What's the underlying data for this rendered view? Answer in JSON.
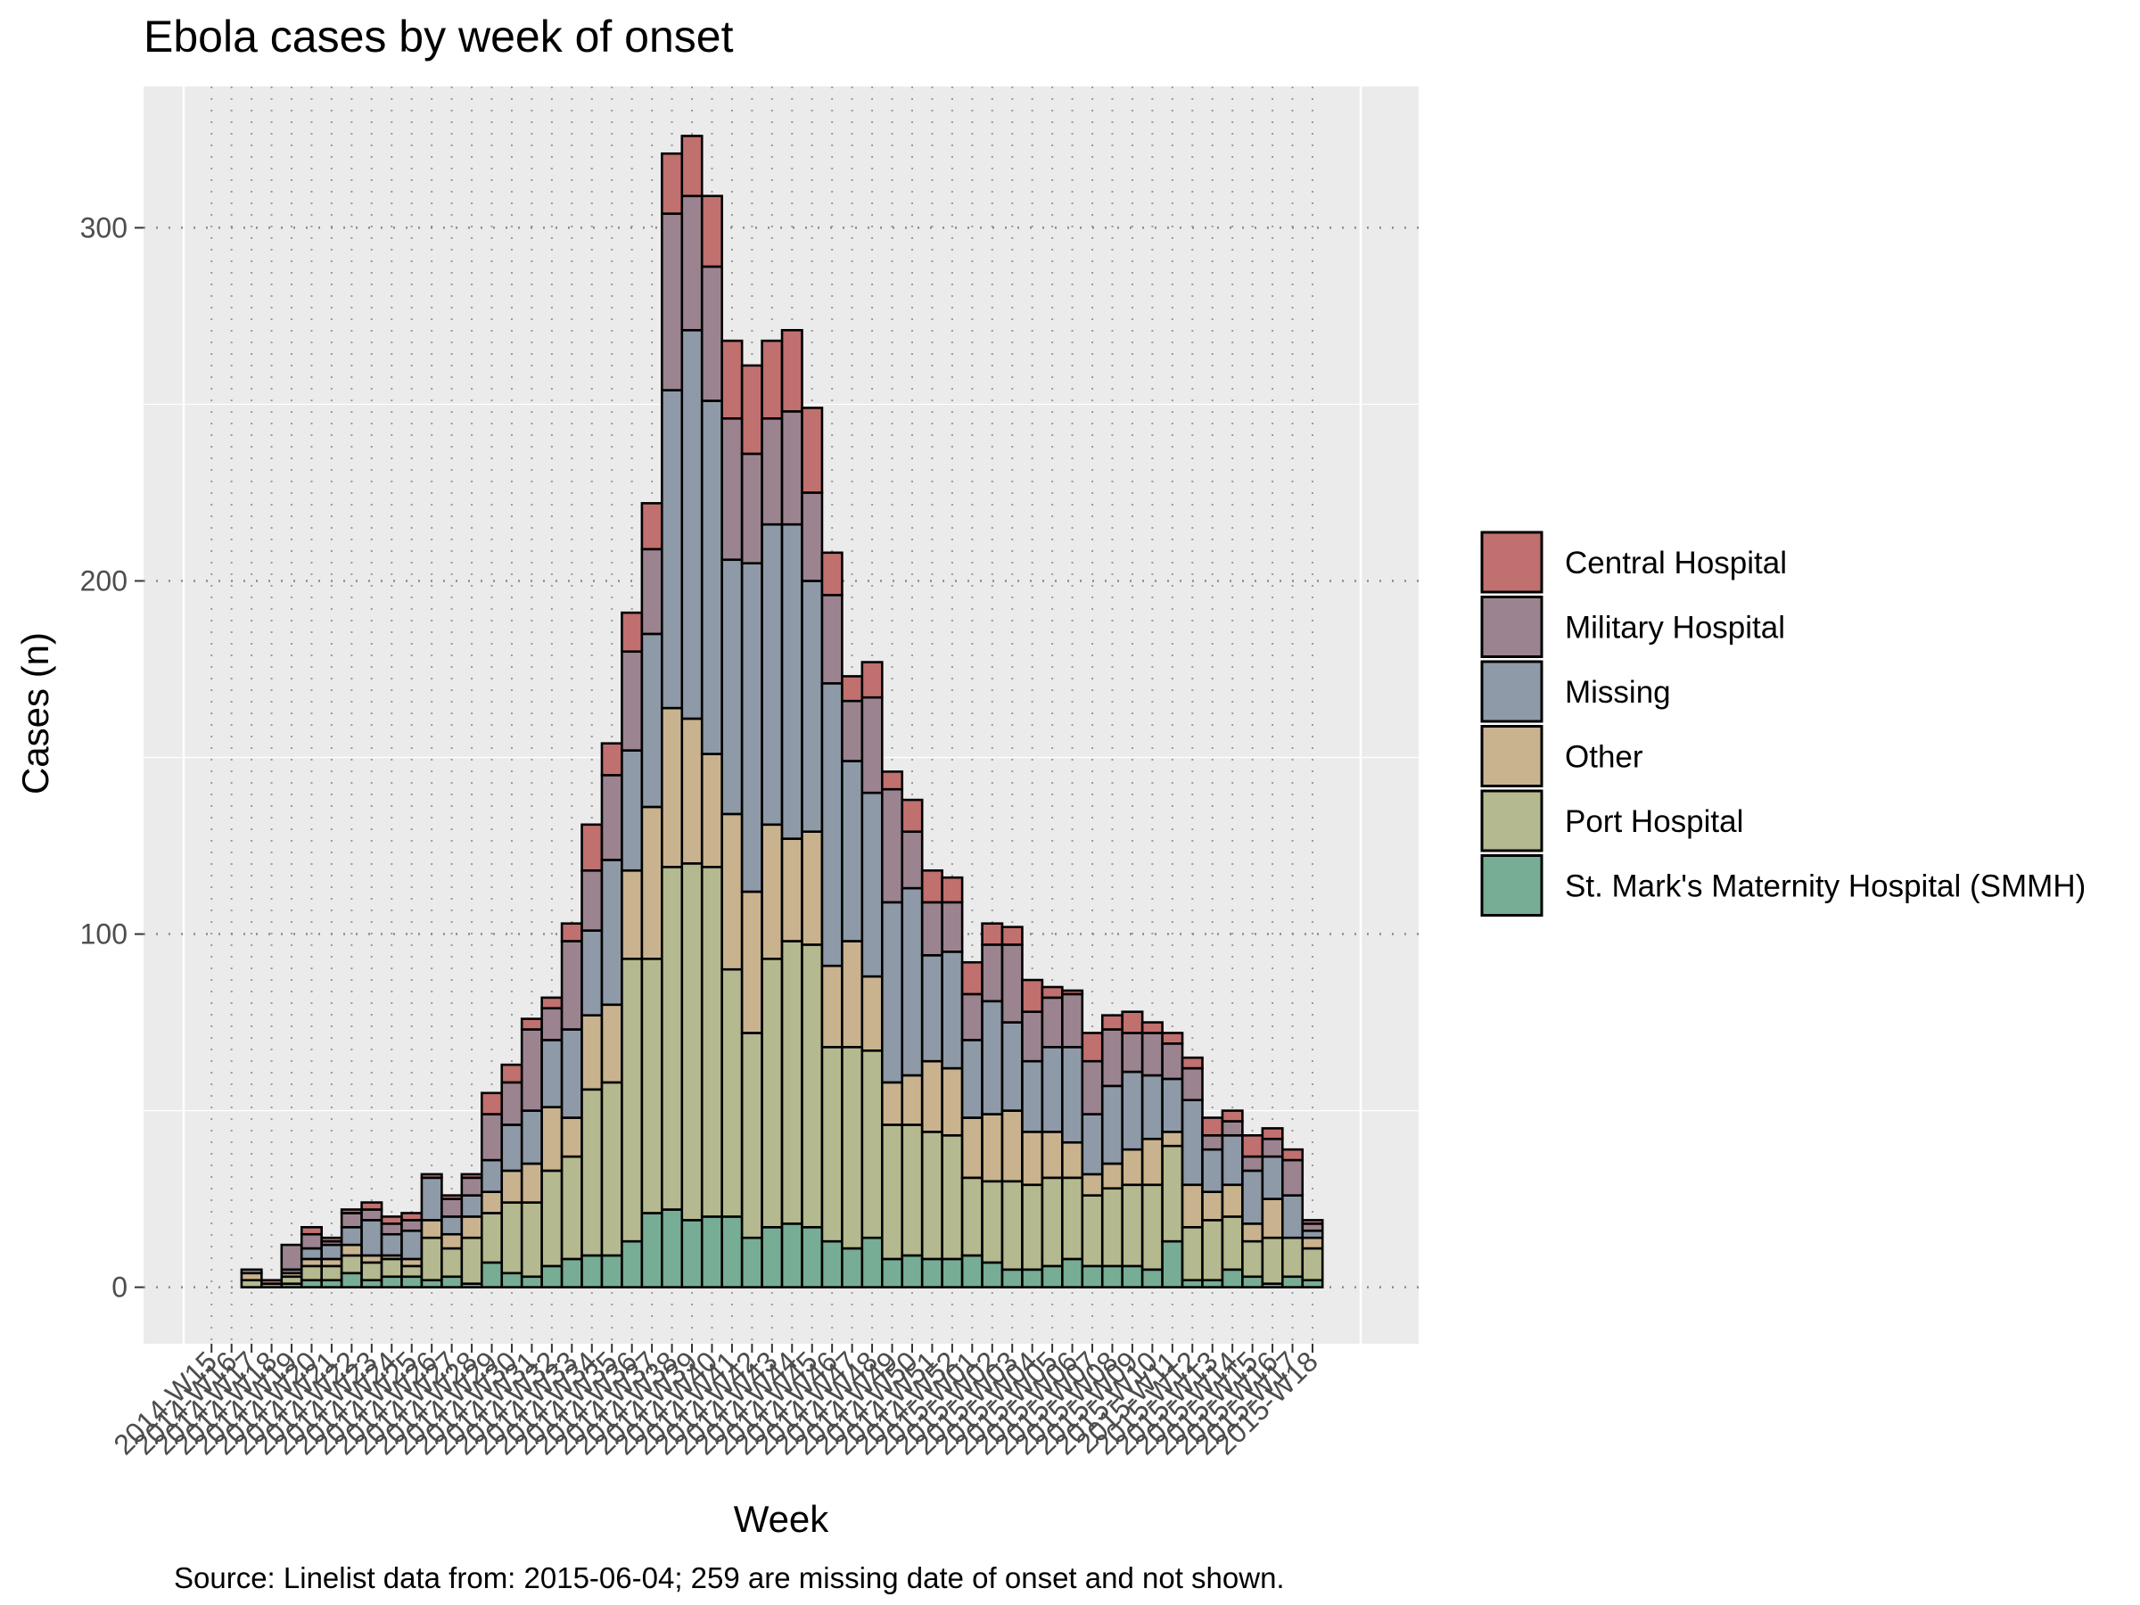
{
  "chart_data": {
    "type": "bar",
    "stacked": true,
    "title": "Ebola cases by week of onset",
    "xlabel": "Week",
    "ylabel": "Cases (n)",
    "caption": "Source: Linelist data from: 2015-06-04; 259 are missing date of onset and not shown.",
    "ylim": [
      -16,
      340
    ],
    "yticks": [
      0,
      100,
      200,
      300
    ],
    "legend_position": "right",
    "series_colors": {
      "Central Hospital": "#c0706f",
      "Military Hospital": "#9b8490",
      "Missing": "#8e9aa7",
      "Other": "#c9b38f",
      "Port Hospital": "#b4b98f",
      "St. Mark's Maternity Hospital (SMMH)": "#77ad94"
    },
    "categories": [
      "2014-W15",
      "2014-W16",
      "2014-W17",
      "2014-W18",
      "2014-W19",
      "2014-W20",
      "2014-W21",
      "2014-W22",
      "2014-W23",
      "2014-W24",
      "2014-W25",
      "2014-W26",
      "2014-W27",
      "2014-W28",
      "2014-W29",
      "2014-W30",
      "2014-W31",
      "2014-W32",
      "2014-W33",
      "2014-W34",
      "2014-W35",
      "2014-W36",
      "2014-W37",
      "2014-W38",
      "2014-W39",
      "2014-W40",
      "2014-W41",
      "2014-W42",
      "2014-W43",
      "2014-W44",
      "2014-W45",
      "2014-W46",
      "2014-W47",
      "2014-W48",
      "2014-W49",
      "2014-W50",
      "2014-W51",
      "2014-W52",
      "2015-W01",
      "2015-W02",
      "2015-W03",
      "2015-W04",
      "2015-W05",
      "2015-W06",
      "2015-W07",
      "2015-W08",
      "2015-W09",
      "2015-W10",
      "2015-W11",
      "2015-W12",
      "2015-W13",
      "2015-W14",
      "2015-W15",
      "2015-W16",
      "2015-W17",
      "2015-W18"
    ],
    "series": [
      {
        "name": "St. Mark's Maternity Hospital (SMMH)",
        "values": [
          0,
          0,
          0,
          1,
          1,
          2,
          2,
          4,
          2,
          3,
          3,
          2,
          3,
          1,
          7,
          4,
          3,
          6,
          8,
          9,
          9,
          13,
          21,
          22,
          19,
          20,
          20,
          14,
          17,
          18,
          17,
          13,
          11,
          14,
          8,
          9,
          8,
          8,
          9,
          7,
          5,
          5,
          6,
          8,
          6,
          6,
          6,
          5,
          13,
          2,
          2,
          5,
          3,
          1,
          3,
          2
        ]
      },
      {
        "name": "Port Hospital",
        "values": [
          0,
          0,
          2,
          0,
          2,
          4,
          4,
          5,
          5,
          5,
          3,
          12,
          8,
          13,
          14,
          20,
          21,
          27,
          29,
          47,
          49,
          80,
          72,
          97,
          101,
          99,
          70,
          58,
          76,
          80,
          80,
          55,
          57,
          53,
          38,
          37,
          36,
          35,
          22,
          23,
          25,
          24,
          25,
          23,
          20,
          22,
          23,
          24,
          27,
          15,
          17,
          15,
          10,
          13,
          11,
          9
        ]
      },
      {
        "name": "Other",
        "values": [
          0,
          0,
          2,
          0,
          1,
          2,
          2,
          3,
          2,
          1,
          2,
          5,
          4,
          6,
          6,
          9,
          11,
          18,
          11,
          21,
          22,
          25,
          43,
          45,
          41,
          32,
          44,
          40,
          38,
          29,
          32,
          23,
          30,
          21,
          12,
          14,
          20,
          19,
          17,
          19,
          20,
          15,
          13,
          10,
          6,
          7,
          10,
          13,
          4,
          12,
          8,
          9,
          5,
          11,
          0,
          3
        ]
      },
      {
        "name": "Missing",
        "values": [
          0,
          0,
          1,
          0,
          1,
          3,
          4,
          5,
          10,
          6,
          8,
          12,
          5,
          6,
          9,
          13,
          15,
          19,
          25,
          24,
          41,
          34,
          49,
          90,
          110,
          100,
          72,
          93,
          85,
          89,
          71,
          80,
          51,
          52,
          51,
          53,
          30,
          33,
          22,
          32,
          25,
          20,
          24,
          27,
          17,
          22,
          22,
          18,
          15,
          24,
          12,
          14,
          15,
          12,
          12,
          2
        ]
      },
      {
        "name": "Military Hospital",
        "values": [
          0,
          0,
          0,
          0,
          7,
          4,
          1,
          4,
          3,
          3,
          3,
          0,
          5,
          5,
          13,
          12,
          23,
          9,
          25,
          17,
          24,
          28,
          24,
          50,
          38,
          38,
          40,
          31,
          30,
          32,
          25,
          25,
          17,
          27,
          32,
          16,
          15,
          14,
          13,
          16,
          22,
          14,
          14,
          15,
          15,
          16,
          11,
          12,
          10,
          9,
          4,
          4,
          4,
          5,
          10,
          2
        ]
      },
      {
        "name": "Central Hospital",
        "values": [
          0,
          0,
          0,
          1,
          0,
          2,
          1,
          1,
          2,
          2,
          2,
          1,
          1,
          1,
          6,
          5,
          3,
          3,
          5,
          13,
          9,
          11,
          13,
          17,
          17,
          20,
          22,
          25,
          22,
          23,
          24,
          12,
          7,
          10,
          5,
          9,
          9,
          7,
          9,
          6,
          5,
          9,
          3,
          1,
          8,
          4,
          6,
          3,
          3,
          3,
          5,
          3,
          6,
          3,
          3,
          1
        ]
      }
    ]
  }
}
